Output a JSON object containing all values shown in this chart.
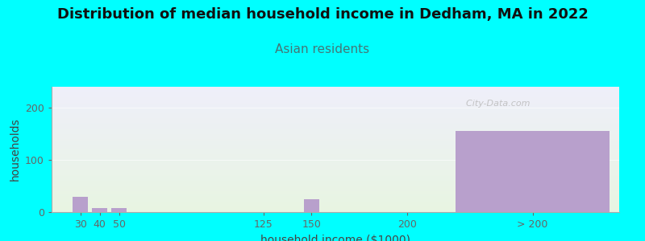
{
  "title": "Distribution of median household income in Dedham, MA in 2022",
  "subtitle": "Asian residents",
  "xlabel": "household income ($1000)",
  "ylabel": "households",
  "background_color": "#00FFFF",
  "plot_bg_top": "#efeffa",
  "plot_bg_bottom": "#e8f5e2",
  "bar_color": "#b8a0cc",
  "watermark": "  City-Data.com",
  "bar_centers": [
    30,
    40,
    50,
    125,
    150,
    200,
    265
  ],
  "values": [
    30,
    8,
    8,
    0,
    25,
    0,
    155
  ],
  "bar_widths": [
    8,
    8,
    8,
    8,
    8,
    8,
    80
  ],
  "tick_labels": [
    "30",
    "40",
    "50",
    "125",
    "150",
    "200",
    "> 200"
  ],
  "xlim": [
    15,
    310
  ],
  "ylim": [
    0,
    240
  ],
  "yticks": [
    0,
    100,
    200
  ],
  "title_fontsize": 13,
  "subtitle_fontsize": 11,
  "axis_label_fontsize": 10,
  "tick_fontsize": 9
}
